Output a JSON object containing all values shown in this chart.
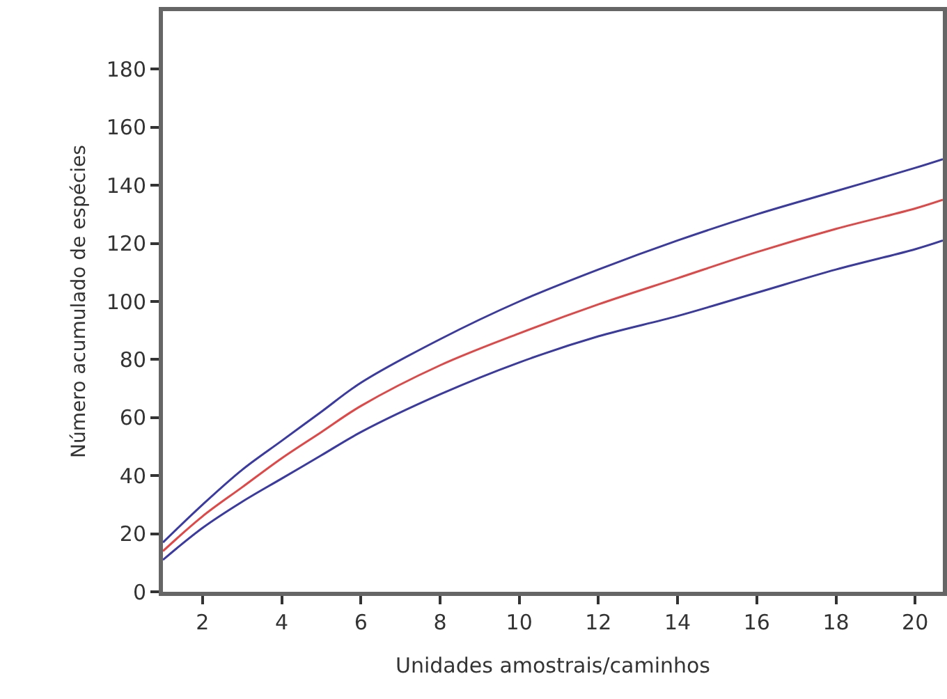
{
  "chart_data": {
    "type": "line",
    "xlabel": "Unidades amostrais/caminhos",
    "ylabel": "Número acumulado de espécies",
    "x": [
      1,
      2,
      3,
      4,
      5,
      6,
      8,
      10,
      12,
      14,
      16,
      18,
      20,
      20.7
    ],
    "series": [
      {
        "color": "#3a3aa0",
        "values": [
          17,
          30,
          42,
          52,
          62,
          72,
          87,
          100,
          111,
          121,
          130,
          138,
          146,
          149
        ]
      },
      {
        "color": "#e04848",
        "values": [
          14,
          26,
          36,
          46,
          55,
          64,
          78,
          89,
          99,
          108,
          117,
          125,
          132,
          135
        ]
      },
      {
        "color": "#3a3aa0",
        "values": [
          11,
          22,
          31,
          39,
          47,
          55,
          68,
          79,
          88,
          95,
          103,
          111,
          118,
          121
        ]
      }
    ],
    "xlim": [
      1,
      20.7
    ],
    "xticks": [
      2,
      4,
      6,
      8,
      10,
      12,
      14,
      16,
      18,
      20
    ],
    "ylim": [
      0,
      200
    ],
    "yticks": [
      0,
      20,
      40,
      60,
      80,
      100,
      120,
      140,
      160,
      180
    ],
    "marker": "none",
    "line_style": "solid"
  }
}
